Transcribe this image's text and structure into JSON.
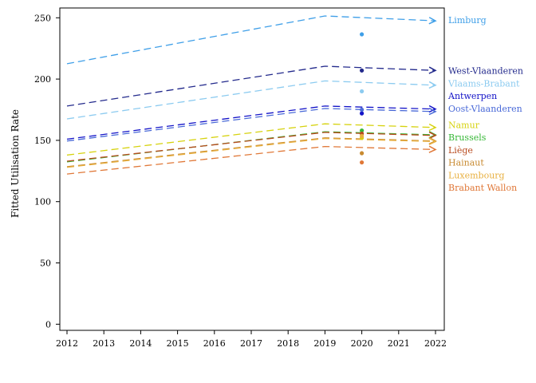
{
  "chart_data": {
    "type": "line",
    "title": "",
    "xlabel": "",
    "ylabel": "Fitted Utilisation Rate",
    "xlim": [
      2012,
      2022
    ],
    "ylim": [
      -5,
      258
    ],
    "x_ticks": [
      "2012",
      "2013",
      "2014",
      "2015",
      "2016",
      "2017",
      "2018",
      "2019",
      "2020",
      "2021",
      "2022"
    ],
    "y_ticks": [
      "0",
      "50",
      "100",
      "150",
      "200",
      "250"
    ],
    "grid": false,
    "legend_placement": "right",
    "series": [
      {
        "name": "Limburg",
        "color": "#3f9fe8",
        "fitted": [
          [
            2012,
            212.5
          ],
          [
            2019,
            251.5
          ],
          [
            2022,
            247.5
          ]
        ],
        "observed": [
          2020,
          236.5
        ]
      },
      {
        "name": "West-Vlaanderen",
        "color": "#232a8c",
        "fitted": [
          [
            2012,
            178
          ],
          [
            2019,
            210.5
          ],
          [
            2022,
            207
          ]
        ],
        "observed": [
          2020,
          207
        ]
      },
      {
        "name": "Vlaams-Brabant",
        "color": "#8ccbf0",
        "fitted": [
          [
            2012,
            167.5
          ],
          [
            2019,
            198.5
          ],
          [
            2022,
            195
          ]
        ],
        "observed": [
          2020,
          190
        ]
      },
      {
        "name": "Antwerpen",
        "color": "#1414c8",
        "fitted": [
          [
            2012,
            151
          ],
          [
            2019,
            178
          ],
          [
            2022,
            175.5
          ]
        ],
        "observed": [
          2020,
          172
        ]
      },
      {
        "name": "Oost-Vlaanderen",
        "color": "#4a6ad8",
        "fitted": [
          [
            2012,
            149.5
          ],
          [
            2019,
            176
          ],
          [
            2022,
            173.5
          ]
        ],
        "observed": [
          2020,
          175
        ]
      },
      {
        "name": "Namur",
        "color": "#d6d20e",
        "fitted": [
          [
            2012,
            138
          ],
          [
            2019,
            163.5
          ],
          [
            2022,
            160.5
          ]
        ],
        "observed": [
          2020,
          152
        ]
      },
      {
        "name": "Brussels",
        "color": "#38b838",
        "fitted": [
          [
            2012,
            132.5
          ],
          [
            2019,
            157
          ],
          [
            2022,
            154.5
          ]
        ],
        "observed": [
          2020,
          158
        ]
      },
      {
        "name": "Liège",
        "color": "#b84a1e",
        "fitted": [
          [
            2012,
            133
          ],
          [
            2019,
            156.5
          ],
          [
            2022,
            154
          ]
        ],
        "observed": [
          2020,
          155.5
        ]
      },
      {
        "name": "Hainaut",
        "color": "#c88a30",
        "fitted": [
          [
            2012,
            128.5
          ],
          [
            2019,
            152
          ],
          [
            2022,
            149.5
          ]
        ],
        "observed": [
          2020,
          139.5
        ]
      },
      {
        "name": "Luxembourg",
        "color": "#e8b040",
        "fitted": [
          [
            2012,
            128
          ],
          [
            2019,
            151.5
          ],
          [
            2022,
            149
          ]
        ],
        "observed": [
          2020,
          153.5
        ]
      },
      {
        "name": "Brabant Wallon",
        "color": "#e07838",
        "fitted": [
          [
            2012,
            122.5
          ],
          [
            2019,
            145
          ],
          [
            2022,
            142.5
          ]
        ],
        "observed": [
          2020,
          132
        ]
      }
    ]
  }
}
